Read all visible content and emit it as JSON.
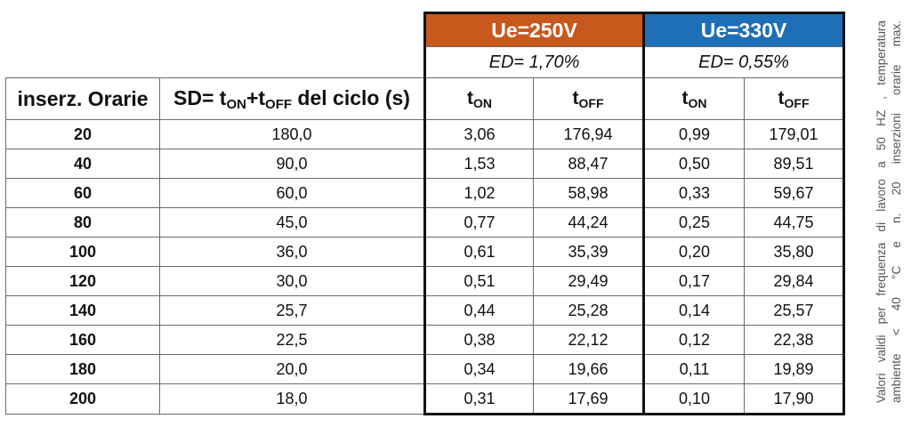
{
  "header": {
    "group1": {
      "title": "Ue=250V",
      "ed": "ED= 1,70%",
      "color": "#c9581c"
    },
    "group2": {
      "title": "Ue=330V",
      "ed": "ED= 0,55%",
      "color": "#1e6fb8"
    },
    "col_inserz": "inserz. Orarie",
    "col_sd_prefix": "SD= t",
    "col_sd_sub1": "ON",
    "col_sd_plus": "+t",
    "col_sd_sub2": "OFF",
    "col_sd_suffix": " del ciclo (s)",
    "t": "t",
    "on": "ON",
    "off": "OFF"
  },
  "rows": [
    [
      "20",
      "180,0",
      "3,06",
      "176,94",
      "0,99",
      "179,01"
    ],
    [
      "40",
      "90,0",
      "1,53",
      "88,47",
      "0,50",
      "89,51"
    ],
    [
      "60",
      "60,0",
      "1,02",
      "58,98",
      "0,33",
      "59,67"
    ],
    [
      "80",
      "45,0",
      "0,77",
      "44,24",
      "0,25",
      "44,75"
    ],
    [
      "100",
      "36,0",
      "0,61",
      "35,39",
      "0,20",
      "35,80"
    ],
    [
      "120",
      "30,0",
      "0,51",
      "29,49",
      "0,17",
      "29,84"
    ],
    [
      "140",
      "25,7",
      "0,44",
      "25,28",
      "0,14",
      "25,57"
    ],
    [
      "160",
      "22,5",
      "0,38",
      "22,12",
      "0,12",
      "22,38"
    ],
    [
      "180",
      "20,0",
      "0,34",
      "19,66",
      "0,11",
      "19,89"
    ],
    [
      "200",
      "18,0",
      "0,31",
      "17,69",
      "0,10",
      "17,90"
    ]
  ],
  "note": {
    "line1": "Valori validi per frequenza di lavoro a 50 HZ , temperatura",
    "line2": "ambiente < 40 °C e n. 20 inserzioni orarie max."
  }
}
